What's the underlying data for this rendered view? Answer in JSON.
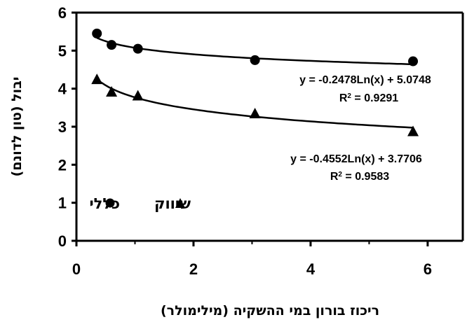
{
  "chart_data": {
    "type": "scatter",
    "xlabel": "ריכוז בורון במי ההשקיה (מילימולר)",
    "ylabel": "יבול (טון לדונם)",
    "xlim": [
      0,
      6.6
    ],
    "ylim": [
      0,
      6
    ],
    "xticks": [
      "0",
      "2",
      "4",
      "6"
    ],
    "yticks": [
      "0",
      "1",
      "2",
      "3",
      "4",
      "5",
      "6"
    ],
    "grid": false,
    "legend_position": "bottom-left",
    "series": [
      {
        "name": "כללי",
        "marker": "circle",
        "x": [
          0.35,
          0.6,
          1.05,
          3.05,
          5.75
        ],
        "y": [
          5.45,
          5.15,
          5.05,
          4.75,
          4.72
        ],
        "trendline": {
          "type": "log",
          "a": -0.2478,
          "b": 5.0748
        },
        "equation": "y = -0.2478Ln(x) + 5.0748",
        "r2_label": "R",
        "r2_value": " = 0.9291"
      },
      {
        "name": "שיווק",
        "marker": "triangle",
        "x": [
          0.35,
          0.6,
          1.05,
          3.05,
          5.75
        ],
        "y": [
          4.25,
          3.92,
          3.82,
          3.35,
          2.88
        ],
        "trendline": {
          "type": "log",
          "a": -0.4552,
          "b": 3.7706
        },
        "equation": "y = -0.4552Ln(x) + 3.7706",
        "r2_label": "R",
        "r2_value": " = 0.9583"
      }
    ],
    "colors": {
      "marker": "#000000",
      "line": "#000000"
    }
  }
}
